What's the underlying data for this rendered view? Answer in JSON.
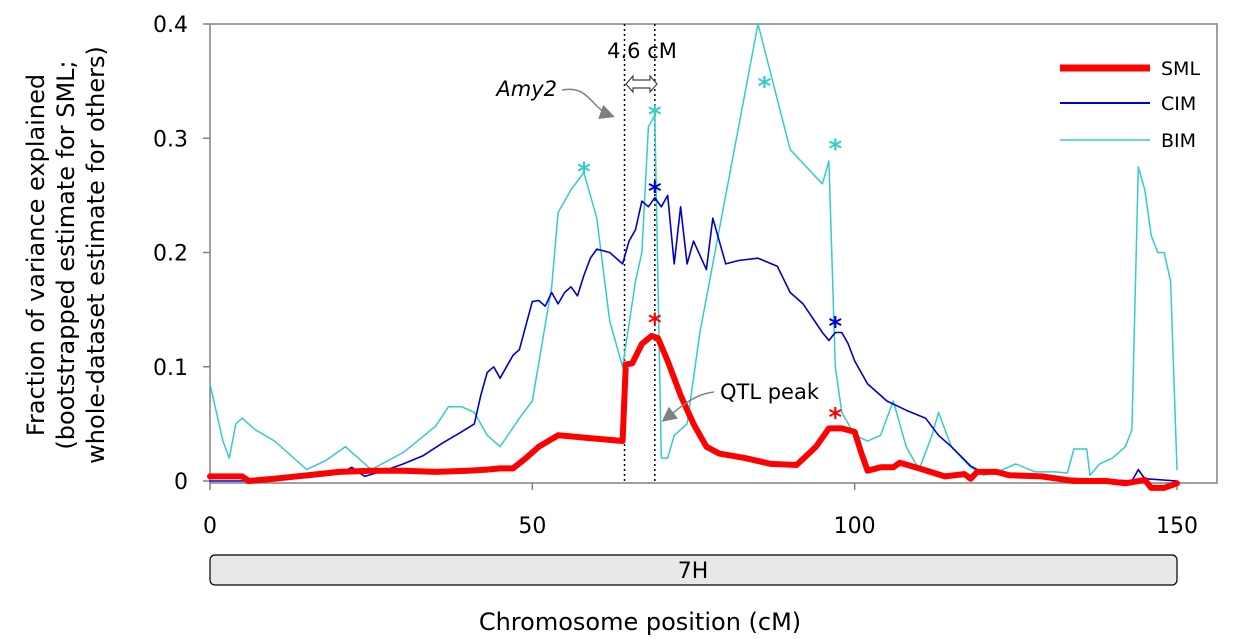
{
  "chart_data": {
    "type": "line",
    "xlabel": "Chromosome position (cM)",
    "ylabel_line1": "Fraction of variance explained",
    "ylabel_line2": "(bootstrapped estimate for SML;",
    "ylabel_line3": "whole-dataset estimate for others)",
    "xlim": [
      0,
      150
    ],
    "ylim": [
      0,
      0.4
    ],
    "x_ticks": [
      0,
      50,
      100,
      150
    ],
    "y_ticks": [
      0,
      0.1,
      0.2,
      0.3,
      0.4
    ],
    "x_tick_labels": [
      "0",
      "50",
      "100",
      "150"
    ],
    "y_tick_labels": [
      "0",
      "0.1",
      "0.2",
      "0.3",
      "0.4"
    ],
    "grid": false,
    "legend_position": "top-right",
    "chromosome_label": "7H",
    "series": [
      {
        "name": "SML",
        "color": "#ff0000",
        "points": [
          [
            0,
            0.004
          ],
          [
            5,
            0.004
          ],
          [
            6,
            0.0
          ],
          [
            10,
            0.002
          ],
          [
            15,
            0.005
          ],
          [
            20,
            0.008
          ],
          [
            25,
            0.009
          ],
          [
            30,
            0.009
          ],
          [
            35,
            0.008
          ],
          [
            40,
            0.009
          ],
          [
            43,
            0.01
          ],
          [
            45,
            0.011
          ],
          [
            47,
            0.011
          ],
          [
            49,
            0.02
          ],
          [
            51,
            0.03
          ],
          [
            54,
            0.04
          ],
          [
            56,
            0.039
          ],
          [
            58,
            0.038
          ],
          [
            60,
            0.037
          ],
          [
            64,
            0.035
          ],
          [
            64.5,
            0.102
          ],
          [
            65.5,
            0.103
          ],
          [
            67,
            0.12
          ],
          [
            68.5,
            0.127
          ],
          [
            69.5,
            0.125
          ],
          [
            71,
            0.105
          ],
          [
            73,
            0.075
          ],
          [
            75,
            0.05
          ],
          [
            77,
            0.03
          ],
          [
            79,
            0.024
          ],
          [
            83,
            0.02
          ],
          [
            87,
            0.015
          ],
          [
            91,
            0.014
          ],
          [
            94,
            0.03
          ],
          [
            96,
            0.046
          ],
          [
            98,
            0.046
          ],
          [
            100,
            0.043
          ],
          [
            101,
            0.025
          ],
          [
            102,
            0.009
          ],
          [
            104,
            0.012
          ],
          [
            106,
            0.012
          ],
          [
            107,
            0.016
          ],
          [
            110,
            0.011
          ],
          [
            114,
            0.004
          ],
          [
            117,
            0.006
          ],
          [
            118,
            0.002
          ],
          [
            119,
            0.008
          ],
          [
            122,
            0.008
          ],
          [
            124,
            0.005
          ],
          [
            129,
            0.004
          ],
          [
            134,
            0.0
          ],
          [
            139,
            0.0
          ],
          [
            142,
            -0.002
          ],
          [
            145,
            0.001
          ],
          [
            146,
            -0.006
          ],
          [
            148,
            -0.006
          ],
          [
            150,
            -0.002
          ]
        ]
      },
      {
        "name": "CIM",
        "color": "#0000cc",
        "points": [
          [
            0,
            0
          ],
          [
            5,
            0
          ],
          [
            10,
            0.001
          ],
          [
            15,
            0.003
          ],
          [
            20,
            0.006
          ],
          [
            22,
            0.012
          ],
          [
            24,
            0.004
          ],
          [
            27,
            0.009
          ],
          [
            30,
            0.015
          ],
          [
            33,
            0.022
          ],
          [
            36,
            0.033
          ],
          [
            39,
            0.043
          ],
          [
            41,
            0.05
          ],
          [
            42,
            0.075
          ],
          [
            43,
            0.095
          ],
          [
            44,
            0.1
          ],
          [
            45,
            0.09
          ],
          [
            46,
            0.1
          ],
          [
            47,
            0.11
          ],
          [
            48,
            0.115
          ],
          [
            50,
            0.157
          ],
          [
            51,
            0.158
          ],
          [
            52,
            0.153
          ],
          [
            53,
            0.165
          ],
          [
            54,
            0.155
          ],
          [
            55,
            0.165
          ],
          [
            56,
            0.17
          ],
          [
            57,
            0.162
          ],
          [
            58,
            0.18
          ],
          [
            59,
            0.195
          ],
          [
            60,
            0.203
          ],
          [
            62,
            0.2
          ],
          [
            64,
            0.19
          ],
          [
            65,
            0.21
          ],
          [
            66,
            0.22
          ],
          [
            67,
            0.245
          ],
          [
            68,
            0.24
          ],
          [
            69,
            0.248
          ],
          [
            70,
            0.24
          ],
          [
            71,
            0.25
          ],
          [
            72,
            0.19
          ],
          [
            73,
            0.24
          ],
          [
            74,
            0.19
          ],
          [
            75,
            0.21
          ],
          [
            77,
            0.185
          ],
          [
            78,
            0.23
          ],
          [
            79,
            0.21
          ],
          [
            80,
            0.19
          ],
          [
            82,
            0.193
          ],
          [
            85,
            0.195
          ],
          [
            88,
            0.188
          ],
          [
            90,
            0.165
          ],
          [
            92,
            0.155
          ],
          [
            95,
            0.13
          ],
          [
            96,
            0.123
          ],
          [
            97,
            0.13
          ],
          [
            98,
            0.13
          ],
          [
            99,
            0.12
          ],
          [
            100,
            0.105
          ],
          [
            102,
            0.085
          ],
          [
            105,
            0.07
          ],
          [
            108,
            0.062
          ],
          [
            111,
            0.055
          ],
          [
            113,
            0.04
          ],
          [
            115,
            0.03
          ],
          [
            118,
            0.013
          ],
          [
            120,
            0.007
          ],
          [
            125,
            0.005
          ],
          [
            130,
            0.003
          ],
          [
            135,
            0.002
          ],
          [
            140,
            0.001
          ],
          [
            143,
            0.0
          ],
          [
            144,
            0.01
          ],
          [
            145,
            0.002
          ],
          [
            150,
            0.0
          ]
        ]
      },
      {
        "name": "BIM",
        "color": "#33cccc",
        "points": [
          [
            0,
            0.085
          ],
          [
            2,
            0.035
          ],
          [
            3,
            0.02
          ],
          [
            4,
            0.05
          ],
          [
            5,
            0.055
          ],
          [
            7,
            0.045
          ],
          [
            10,
            0.035
          ],
          [
            15,
            0.01
          ],
          [
            18,
            0.018
          ],
          [
            21,
            0.03
          ],
          [
            23,
            0.02
          ],
          [
            25,
            0.01
          ],
          [
            30,
            0.025
          ],
          [
            35,
            0.048
          ],
          [
            37,
            0.065
          ],
          [
            39,
            0.065
          ],
          [
            41,
            0.06
          ],
          [
            43,
            0.04
          ],
          [
            45,
            0.03
          ],
          [
            48,
            0.055
          ],
          [
            50,
            0.07
          ],
          [
            53,
            0.17
          ],
          [
            54,
            0.235
          ],
          [
            56,
            0.255
          ],
          [
            58,
            0.27
          ],
          [
            60,
            0.23
          ],
          [
            62,
            0.14
          ],
          [
            64,
            0.1
          ],
          [
            66,
            0.175
          ],
          [
            67,
            0.2
          ],
          [
            68,
            0.31
          ],
          [
            69,
            0.32
          ],
          [
            70,
            0.02
          ],
          [
            71,
            0.02
          ],
          [
            72,
            0.04
          ],
          [
            74,
            0.05
          ],
          [
            76,
            0.13
          ],
          [
            80,
            0.25
          ],
          [
            85,
            0.4
          ],
          [
            90,
            0.29
          ],
          [
            95,
            0.26
          ],
          [
            96,
            0.28
          ],
          [
            97,
            0.1
          ],
          [
            98,
            0.06
          ],
          [
            100,
            0.04
          ],
          [
            102,
            0.035
          ],
          [
            104,
            0.04
          ],
          [
            106,
            0.07
          ],
          [
            108,
            0.03
          ],
          [
            110,
            0.01
          ],
          [
            112,
            0.04
          ],
          [
            113,
            0.06
          ],
          [
            115,
            0.03
          ],
          [
            118,
            0.012
          ],
          [
            120,
            0.005
          ],
          [
            123,
            0.01
          ],
          [
            125,
            0.015
          ],
          [
            128,
            0.008
          ],
          [
            131,
            0.008
          ],
          [
            133,
            0.007
          ],
          [
            134,
            0.028
          ],
          [
            136,
            0.028
          ],
          [
            136.5,
            0.005
          ],
          [
            138,
            0.015
          ],
          [
            140,
            0.02
          ],
          [
            142,
            0.03
          ],
          [
            143,
            0.045
          ],
          [
            144,
            0.275
          ],
          [
            145,
            0.255
          ],
          [
            146,
            0.215
          ],
          [
            147,
            0.2
          ],
          [
            148,
            0.2
          ],
          [
            149,
            0.175
          ],
          [
            150,
            0.01
          ]
        ]
      }
    ],
    "significance_markers": [
      {
        "series": "BIM",
        "color": "#33cccc",
        "x": 58,
        "y": 0.27,
        "symbol": "*"
      },
      {
        "series": "BIM",
        "color": "#33cccc",
        "x": 69,
        "y": 0.32,
        "symbol": "*"
      },
      {
        "series": "BIM",
        "color": "#33cccc",
        "x": 86,
        "y": 0.345,
        "symbol": "*"
      },
      {
        "series": "BIM",
        "color": "#33cccc",
        "x": 97,
        "y": 0.29,
        "symbol": "*"
      },
      {
        "series": "CIM",
        "color": "#0000cc",
        "x": 69,
        "y": 0.253,
        "symbol": "*"
      },
      {
        "series": "CIM",
        "color": "#0000cc",
        "x": 97,
        "y": 0.135,
        "symbol": "*"
      },
      {
        "series": "SML",
        "color": "#ff0000",
        "x": 69,
        "y": 0.138,
        "symbol": "*"
      },
      {
        "series": "SML",
        "color": "#ff0000",
        "x": 97,
        "y": 0.055,
        "symbol": "*"
      }
    ],
    "vertical_lines": [
      64.3,
      69
    ],
    "annotations": {
      "interval_label": "4.6 cM",
      "amy2_label": "Amy2",
      "qtl_peak_label": "QTL peak"
    }
  }
}
